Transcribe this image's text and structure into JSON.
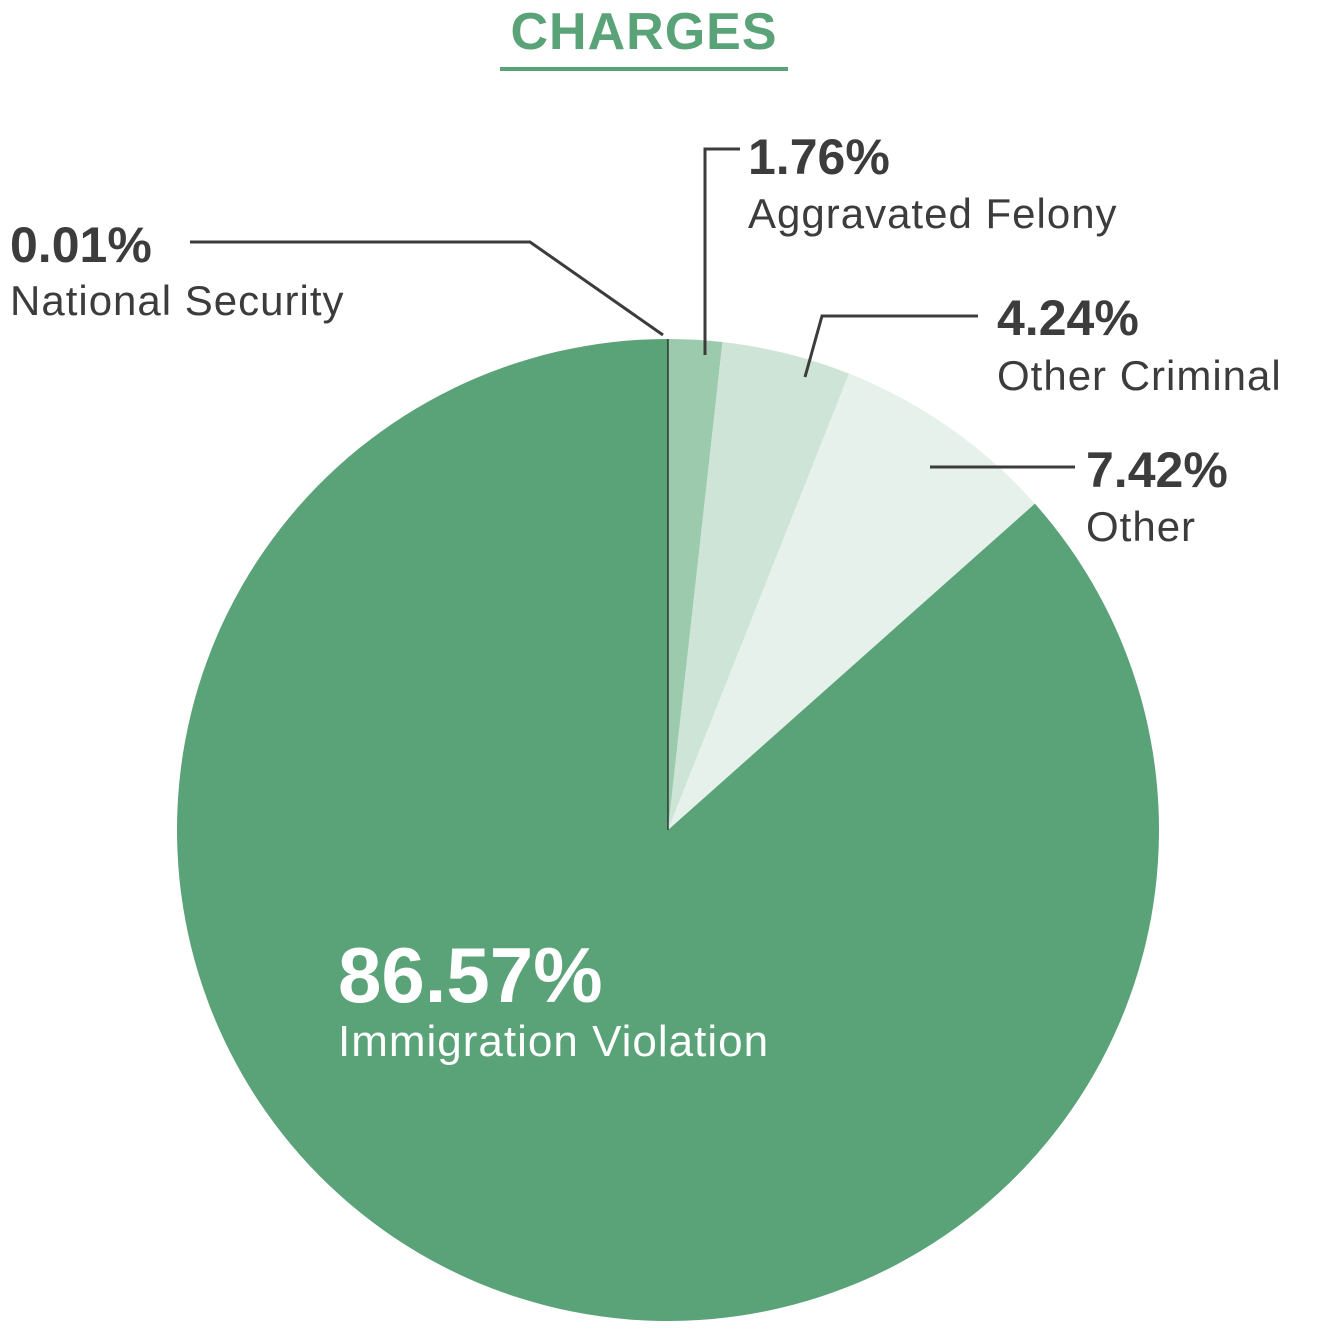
{
  "colors": {
    "title": "#5aa277",
    "leader": "#3c3c3c",
    "label_dark": "#3c3c3c",
    "label_light": "#ffffff",
    "slice_border": "#1a1a1a"
  },
  "chart_data": {
    "type": "pie",
    "title": "CHARGES",
    "start_angle": "12 o'clock",
    "direction": "clockwise",
    "slices": [
      {
        "label": "National Security",
        "value": 0.01,
        "value_label": "0.01%",
        "color": "#5aa277"
      },
      {
        "label": "Aggravated Felony",
        "value": 1.76,
        "value_label": "1.76%",
        "color": "#9ccaad"
      },
      {
        "label": "Other Criminal",
        "value": 4.24,
        "value_label": "4.24%",
        "color": "#cde4d7"
      },
      {
        "label": "Other",
        "value": 7.42,
        "value_label": "7.42%",
        "color": "#e6f1eb"
      },
      {
        "label": "Immigration Violation",
        "value": 86.57,
        "value_label": "86.57%",
        "color": "#5aa277"
      }
    ]
  }
}
